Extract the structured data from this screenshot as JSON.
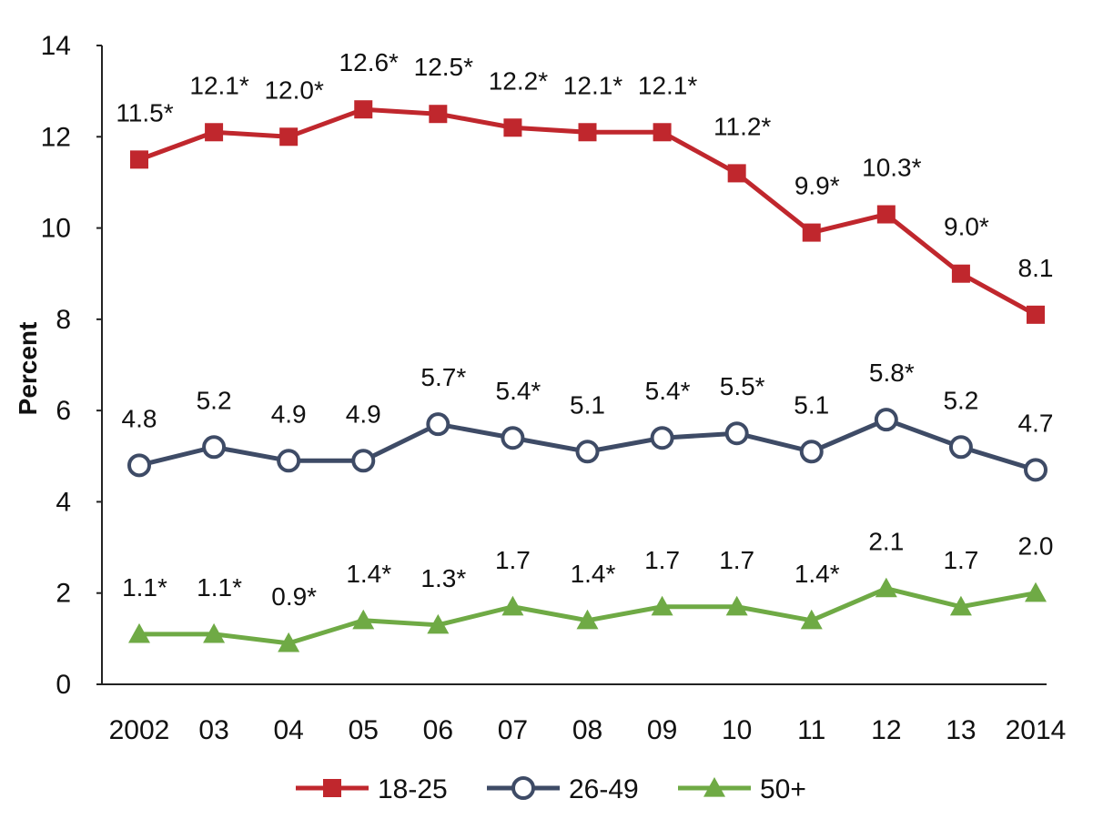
{
  "chart_data": {
    "type": "line",
    "title": "",
    "xlabel": "",
    "ylabel": "Percent",
    "ylim": [
      0,
      14
    ],
    "yticks": [
      "0",
      "2",
      "4",
      "6",
      "8",
      "10",
      "12",
      "14"
    ],
    "categories": [
      "2002",
      "03",
      "04",
      "05",
      "06",
      "07",
      "08",
      "09",
      "10",
      "11",
      "12",
      "13",
      "2014"
    ],
    "grid": false,
    "legend_position": "bottom",
    "series": [
      {
        "name": "18-25",
        "color": "#C0272D",
        "marker": "square",
        "values": [
          11.5,
          12.1,
          12.0,
          12.6,
          12.5,
          12.2,
          12.1,
          12.1,
          11.2,
          9.9,
          10.3,
          9.0,
          8.1
        ],
        "labels": [
          "11.5*",
          "12.1*",
          "12.0*",
          "12.6*",
          "12.5*",
          "12.2*",
          "12.1*",
          "12.1*",
          "11.2*",
          "9.9*",
          "10.3*",
          "9.0*",
          "8.1"
        ]
      },
      {
        "name": "26-49",
        "color": "#3E4B66",
        "marker": "circle",
        "values": [
          4.8,
          5.2,
          4.9,
          4.9,
          5.7,
          5.4,
          5.1,
          5.4,
          5.5,
          5.1,
          5.8,
          5.2,
          4.7
        ],
        "labels": [
          "4.8",
          "5.2",
          "4.9",
          "4.9",
          "5.7*",
          "5.4*",
          "5.1",
          "5.4*",
          "5.5*",
          "5.1",
          "5.8*",
          "5.2",
          "4.7"
        ]
      },
      {
        "name": "50+",
        "color": "#6FAA45",
        "marker": "triangle",
        "values": [
          1.1,
          1.1,
          0.9,
          1.4,
          1.3,
          1.7,
          1.4,
          1.7,
          1.7,
          1.4,
          2.1,
          1.7,
          2.0
        ],
        "labels": [
          "1.1*",
          "1.1*",
          "0.9*",
          "1.4*",
          "1.3*",
          "1.7",
          "1.4*",
          "1.7",
          "1.7",
          "1.4*",
          "2.1",
          "1.7",
          "2.0"
        ]
      }
    ]
  }
}
